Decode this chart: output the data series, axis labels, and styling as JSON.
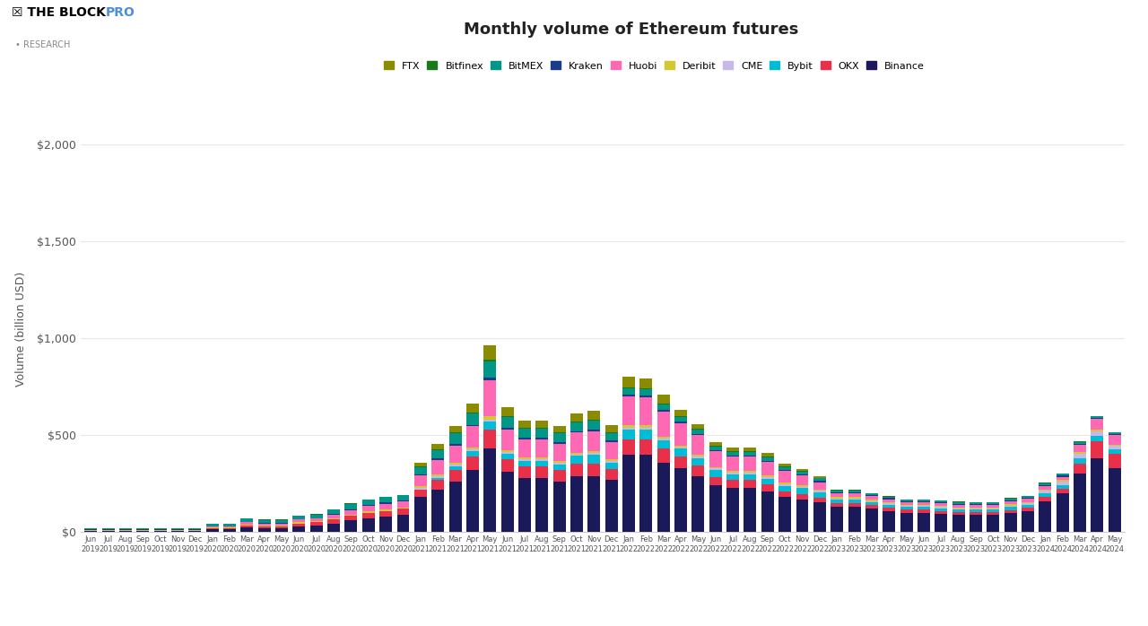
{
  "title": "Monthly volume of Ethereum futures",
  "ylabel": "Volume (billion USD)",
  "background_color": "#ffffff",
  "grid_color": "#e8e8e8",
  "exchanges": [
    "FTX",
    "Bitfinex",
    "BitMEX",
    "Kraken",
    "Huobi",
    "Deribit",
    "CME",
    "Bybit",
    "OKX",
    "Binance"
  ],
  "colors": {
    "FTX": "#8B8B00",
    "Bitfinex": "#1a7a1a",
    "BitMEX": "#009688",
    "Kraken": "#1a3a8a",
    "Huobi": "#FF69B4",
    "Deribit": "#d4c832",
    "CME": "#c8b8e8",
    "Bybit": "#00bcd4",
    "OKX": "#e8304a",
    "Binance": "#1a1a5a"
  },
  "months": [
    "Jun 2019",
    "Jul 2019",
    "Aug 2019",
    "Sep 2019",
    "Oct 2019",
    "Nov 2019",
    "Dec 2019",
    "Jan 2020",
    "Feb 2020",
    "Mar 2020",
    "Apr 2020",
    "May 2020",
    "Jun 2020",
    "Jul 2020",
    "Aug 2020",
    "Sep 2020",
    "Oct 2020",
    "Nov 2020",
    "Dec 2020",
    "Jan 2021",
    "Feb 2021",
    "Mar 2021",
    "Apr 2021",
    "May 2021",
    "Jun 2021",
    "Jul 2021",
    "Aug 2021",
    "Sep 2021",
    "Oct 2021",
    "Nov 2021",
    "Dec 2021",
    "Jan 2022",
    "Feb 2022",
    "Mar 2022",
    "Apr 2022",
    "May 2022",
    "Jun 2022",
    "Jul 2022",
    "Aug 2022",
    "Sep 2022",
    "Oct 2022",
    "Nov 2022",
    "Dec 2022",
    "Jan 2023",
    "Feb 2023",
    "Mar 2023",
    "Apr 2023",
    "May 2023",
    "Jun 2023",
    "Jul 2023",
    "Aug 2023",
    "Sep 2023",
    "Oct 2023",
    "Nov 2023",
    "Dec 2023",
    "Jan 2024",
    "Feb 2024",
    "Mar 2024",
    "Apr 2024",
    "May 2024"
  ],
  "data": {
    "Binance": [
      5,
      5,
      5,
      5,
      5,
      5,
      5,
      15,
      15,
      25,
      20,
      20,
      30,
      35,
      45,
      60,
      70,
      80,
      90,
      180,
      220,
      260,
      320,
      430,
      310,
      280,
      280,
      260,
      290,
      290,
      270,
      400,
      400,
      360,
      330,
      290,
      240,
      230,
      230,
      210,
      180,
      170,
      155,
      130,
      130,
      120,
      110,
      100,
      100,
      95,
      90,
      90,
      90,
      100,
      110,
      160,
      200,
      300,
      380,
      330
    ],
    "OKX": [
      3,
      3,
      3,
      3,
      3,
      3,
      3,
      5,
      5,
      10,
      10,
      10,
      15,
      15,
      20,
      25,
      30,
      30,
      30,
      40,
      50,
      60,
      70,
      100,
      65,
      60,
      60,
      60,
      65,
      65,
      55,
      80,
      80,
      70,
      60,
      55,
      45,
      40,
      40,
      38,
      30,
      28,
      22,
      20,
      20,
      18,
      15,
      15,
      15,
      15,
      14,
      13,
      13,
      14,
      15,
      20,
      22,
      55,
      90,
      75
    ],
    "Bybit": [
      0,
      0,
      0,
      0,
      0,
      0,
      0,
      0,
      0,
      0,
      0,
      0,
      0,
      0,
      0,
      0,
      0,
      0,
      0,
      0,
      10,
      20,
      30,
      40,
      30,
      28,
      28,
      30,
      38,
      45,
      35,
      50,
      50,
      45,
      40,
      38,
      35,
      28,
      28,
      28,
      28,
      28,
      27,
      18,
      18,
      17,
      17,
      14,
      14,
      14,
      13,
      13,
      13,
      15,
      16,
      20,
      22,
      28,
      28,
      22
    ],
    "CME": [
      0,
      0,
      0,
      0,
      0,
      0,
      0,
      0,
      0,
      0,
      0,
      0,
      0,
      0,
      0,
      0,
      0,
      0,
      0,
      8,
      8,
      8,
      8,
      12,
      8,
      8,
      8,
      8,
      8,
      8,
      8,
      10,
      10,
      8,
      8,
      8,
      8,
      8,
      8,
      8,
      8,
      8,
      8,
      6,
      6,
      6,
      6,
      5,
      5,
      5,
      5,
      5,
      5,
      8,
      8,
      12,
      16,
      22,
      22,
      18
    ],
    "Deribit": [
      1,
      1,
      1,
      1,
      1,
      1,
      1,
      3,
      3,
      5,
      5,
      5,
      5,
      5,
      6,
      6,
      6,
      7,
      7,
      8,
      8,
      8,
      8,
      15,
      8,
      8,
      8,
      8,
      8,
      8,
      8,
      10,
      10,
      8,
      8,
      8,
      8,
      8,
      8,
      8,
      8,
      8,
      8,
      7,
      7,
      7,
      7,
      6,
      6,
      6,
      6,
      6,
      6,
      7,
      7,
      8,
      8,
      8,
      8,
      7
    ],
    "Huobi": [
      3,
      3,
      3,
      3,
      3,
      3,
      3,
      6,
      6,
      10,
      10,
      10,
      14,
      14,
      18,
      22,
      28,
      30,
      30,
      55,
      75,
      90,
      110,
      185,
      110,
      95,
      95,
      90,
      105,
      105,
      90,
      150,
      145,
      130,
      115,
      100,
      80,
      75,
      75,
      70,
      60,
      50,
      38,
      20,
      20,
      18,
      15,
      14,
      14,
      14,
      13,
      13,
      13,
      15,
      15,
      18,
      18,
      38,
      55,
      48
    ],
    "Kraken": [
      1,
      1,
      1,
      1,
      1,
      1,
      1,
      2,
      2,
      3,
      3,
      3,
      3,
      3,
      4,
      5,
      5,
      5,
      5,
      8,
      8,
      8,
      8,
      14,
      8,
      8,
      8,
      8,
      8,
      8,
      8,
      8,
      8,
      8,
      8,
      8,
      7,
      7,
      7,
      7,
      7,
      7,
      7,
      5,
      5,
      5,
      5,
      5,
      5,
      5,
      5,
      5,
      5,
      5,
      5,
      5,
      5,
      5,
      5,
      5
    ],
    "BitMEX": [
      8,
      6,
      6,
      6,
      6,
      6,
      6,
      10,
      10,
      18,
      15,
      15,
      18,
      18,
      22,
      28,
      28,
      28,
      28,
      35,
      45,
      55,
      60,
      85,
      55,
      45,
      45,
      45,
      45,
      45,
      38,
      35,
      35,
      30,
      25,
      22,
      18,
      18,
      18,
      18,
      14,
      13,
      12,
      9,
      9,
      9,
      9,
      9,
      9,
      9,
      9,
      9,
      9,
      9,
      9,
      9,
      9,
      9,
      9,
      9
    ],
    "Bitfinex": [
      1,
      1,
      1,
      1,
      1,
      1,
      1,
      2,
      2,
      2,
      2,
      2,
      2,
      2,
      2,
      2,
      2,
      3,
      3,
      4,
      4,
      4,
      4,
      7,
      4,
      4,
      4,
      4,
      4,
      4,
      4,
      5,
      5,
      5,
      4,
      4,
      3,
      3,
      3,
      3,
      3,
      3,
      3,
      2,
      2,
      2,
      2,
      2,
      2,
      2,
      2,
      2,
      2,
      2,
      2,
      2,
      2,
      2,
      2,
      2
    ],
    "FTX": [
      0,
      0,
      0,
      0,
      0,
      0,
      0,
      0,
      0,
      0,
      0,
      0,
      0,
      0,
      0,
      0,
      0,
      0,
      0,
      18,
      25,
      35,
      45,
      75,
      45,
      38,
      38,
      35,
      42,
      48,
      38,
      55,
      50,
      45,
      35,
      25,
      18,
      18,
      18,
      18,
      13,
      11,
      10,
      0,
      0,
      0,
      0,
      0,
      0,
      0,
      0,
      0,
      0,
      0,
      0,
      0,
      0,
      0,
      0,
      0
    ]
  },
  "yticks": [
    0,
    500,
    1000,
    1500,
    2000
  ],
  "ytick_labels": [
    "$0",
    "$500",
    "$1,000",
    "$1,500",
    "$2,000"
  ]
}
